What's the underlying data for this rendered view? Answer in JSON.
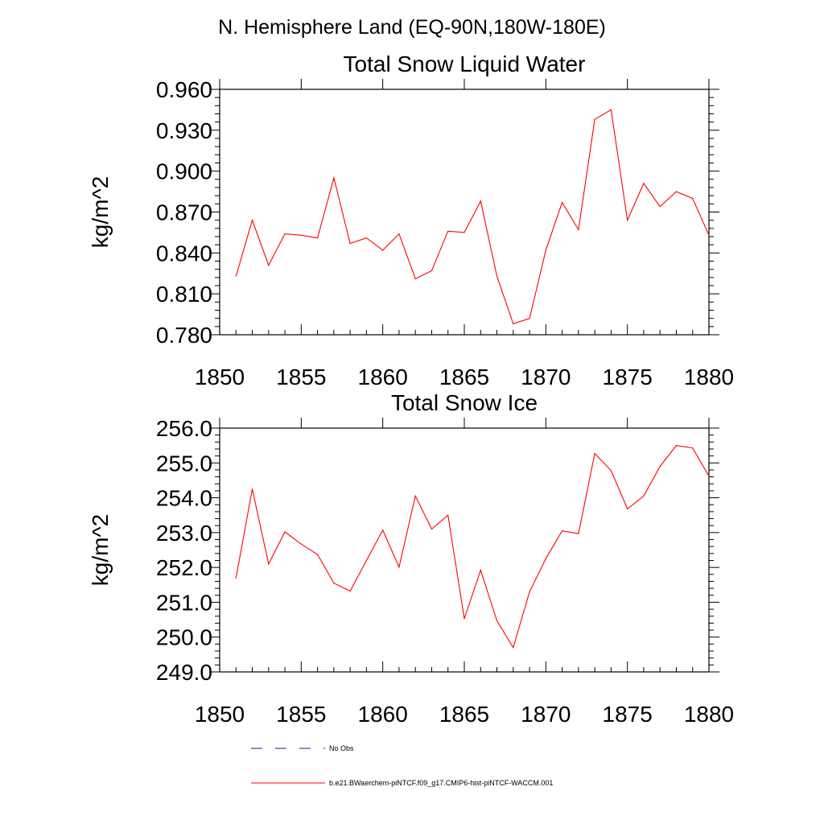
{
  "header": {
    "main_title": "N. Hemisphere Land (EQ-90N,180W-180E)"
  },
  "legend": {
    "obs_label": "No Obs",
    "model_label": "b.e21.BWaerchem-piNTCF.f09_g17.CMIP6-hist-piNTCF-WACCM.001"
  },
  "colors": {
    "series": "#ff0000",
    "obs": "#1a1a8c",
    "axis": "#000000"
  },
  "chart_data": [
    {
      "type": "line",
      "title": "Total Snow Liquid Water",
      "xlabel": "",
      "ylabel": "kg/m^2",
      "xlim": [
        1850,
        1880
      ],
      "ylim": [
        0.78,
        0.96
      ],
      "xticks": [
        "1850",
        "1855",
        "1860",
        "1865",
        "1870",
        "1875",
        "1880"
      ],
      "yticks": [
        "0.780",
        "0.810",
        "0.840",
        "0.870",
        "0.900",
        "0.930",
        "0.960"
      ],
      "series": [
        {
          "name": "b.e21.BWaerchem-piNTCF.f09_g17.CMIP6-hist-piNTCF-WACCM.001",
          "x": [
            1851,
            1852,
            1853,
            1854,
            1855,
            1856,
            1857,
            1858,
            1859,
            1860,
            1861,
            1862,
            1863,
            1864,
            1865,
            1866,
            1867,
            1868,
            1869,
            1870,
            1871,
            1872,
            1873,
            1874,
            1875,
            1876,
            1877,
            1878,
            1879,
            1880
          ],
          "y": [
            0.823,
            0.864,
            0.831,
            0.854,
            0.853,
            0.851,
            0.895,
            0.847,
            0.851,
            0.842,
            0.854,
            0.821,
            0.827,
            0.856,
            0.855,
            0.878,
            0.823,
            0.788,
            0.792,
            0.842,
            0.877,
            0.857,
            0.938,
            0.945,
            0.864,
            0.891,
            0.874,
            0.885,
            0.88,
            0.853
          ]
        }
      ]
    },
    {
      "type": "line",
      "title": "Total Snow Ice",
      "xlabel": "",
      "ylabel": "kg/m^2",
      "xlim": [
        1850,
        1880
      ],
      "ylim": [
        249.0,
        256.0
      ],
      "xticks": [
        "1850",
        "1855",
        "1860",
        "1865",
        "1870",
        "1875",
        "1880"
      ],
      "yticks": [
        "249.0",
        "250.0",
        "251.0",
        "252.0",
        "253.0",
        "254.0",
        "255.0",
        "256.0"
      ],
      "series": [
        {
          "name": "b.e21.BWaerchem-piNTCF.f09_g17.CMIP6-hist-piNTCF-WACCM.001",
          "x": [
            1851,
            1852,
            1853,
            1854,
            1855,
            1856,
            1857,
            1858,
            1859,
            1860,
            1861,
            1862,
            1863,
            1864,
            1865,
            1866,
            1867,
            1868,
            1869,
            1870,
            1871,
            1872,
            1873,
            1874,
            1875,
            1876,
            1877,
            1878,
            1879,
            1880
          ],
          "y": [
            251.7,
            254.25,
            252.1,
            253.02,
            252.67,
            252.37,
            251.55,
            251.32,
            252.2,
            253.07,
            252.01,
            254.05,
            253.1,
            253.5,
            250.53,
            251.92,
            250.47,
            249.7,
            251.3,
            252.25,
            253.05,
            252.97,
            255.27,
            254.78,
            253.68,
            254.05,
            254.9,
            255.5,
            255.43,
            254.62
          ]
        }
      ]
    }
  ]
}
